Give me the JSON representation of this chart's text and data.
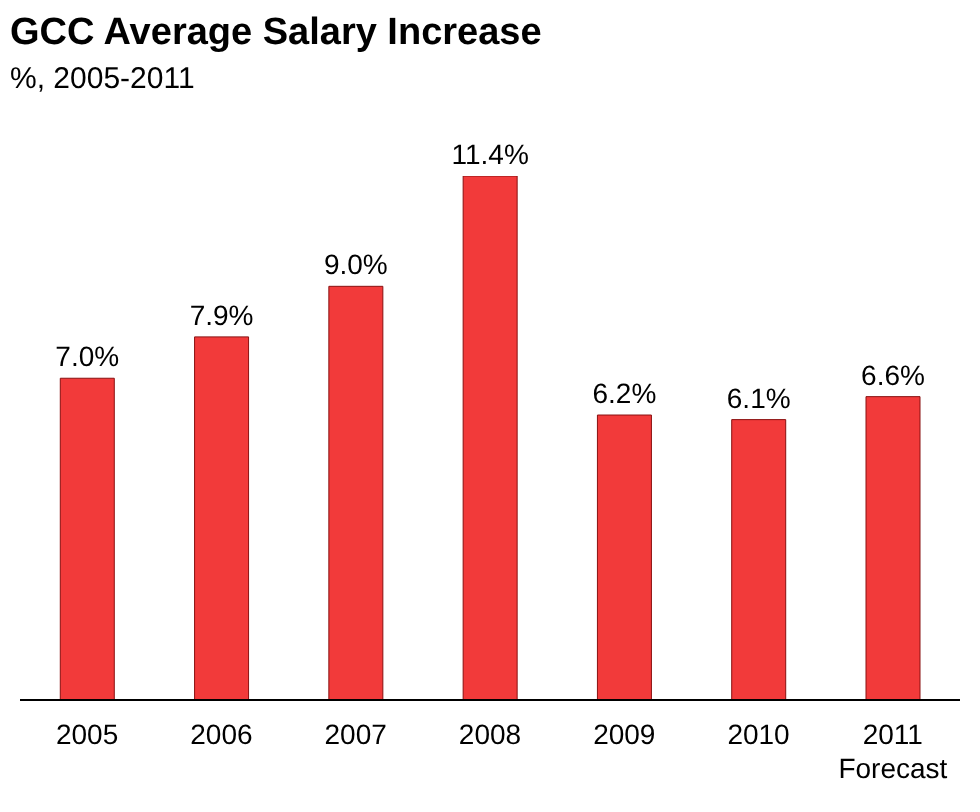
{
  "chart_data": {
    "type": "bar",
    "title": "GCC Average Salary Increase",
    "subtitle": "%, 2005-2011",
    "categories": [
      "2005",
      "2006",
      "2007",
      "2008",
      "2009",
      "2010",
      "2011\nForecast"
    ],
    "values": [
      7.0,
      7.9,
      9.0,
      11.4,
      6.2,
      6.1,
      6.6
    ],
    "value_labels": [
      "7.0%",
      "7.9%",
      "9.0%",
      "11.4%",
      "6.2%",
      "6.1%",
      "6.6%"
    ],
    "color": "#f23a3a"
  }
}
